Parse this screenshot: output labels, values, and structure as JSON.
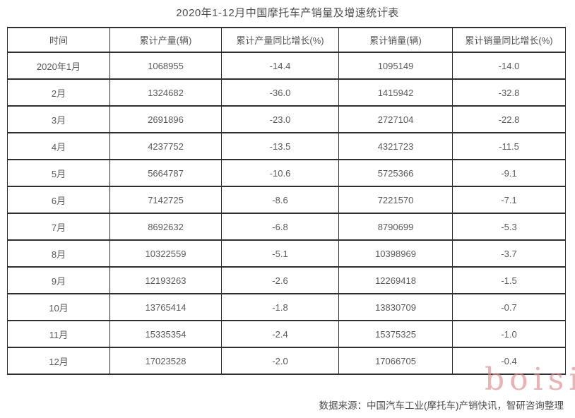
{
  "title": "2020年1-12月中国摩托车产销量及增速统计表",
  "chart_data": {
    "type": "table",
    "title": "2020年1-12月中国摩托车产销量及增速统计表",
    "columns": [
      "时间",
      "累计产量(辆)",
      "累计产量同比增长(%)",
      "累计销量(辆)",
      "累计销量同比增长(%)"
    ],
    "column_keys": [
      "time",
      "cumulative-production",
      "production-yoy-growth",
      "cumulative-sales",
      "sales-yoy-growth"
    ],
    "rows": [
      [
        "2020年1月",
        "1068955",
        "-14.4",
        "1095149",
        "-14.0"
      ],
      [
        "2月",
        "1324682",
        "-36.0",
        "1415942",
        "-32.8"
      ],
      [
        "3月",
        "2691896",
        "-23.0",
        "2727104",
        "-22.8"
      ],
      [
        "4月",
        "4237752",
        "-13.5",
        "4321723",
        "-11.5"
      ],
      [
        "5月",
        "5664787",
        "-10.6",
        "5725366",
        "-9.1"
      ],
      [
        "6月",
        "7142725",
        "-8.6",
        "7221570",
        "-7.1"
      ],
      [
        "7月",
        "8692632",
        "-6.8",
        "8790699",
        "-5.3"
      ],
      [
        "8月",
        "10322559",
        "-5.1",
        "10398969",
        "-3.7"
      ],
      [
        "9月",
        "12193263",
        "-2.6",
        "12269418",
        "-1.5"
      ],
      [
        "10月",
        "13765414",
        "-1.8",
        "13830709",
        "-0.7"
      ],
      [
        "11月",
        "15335354",
        "-2.4",
        "15375325",
        "-1.0"
      ],
      [
        "12月",
        "17023528",
        "-2.0",
        "17066705",
        "-0.4"
      ]
    ],
    "source_note": "数据来源：中国汽车工业(摩托车)产销快讯，智研咨询整理"
  },
  "footer": {
    "source_text": "数据来源：中国汽车工业(摩托车)产销快讯，智研咨询整理"
  },
  "watermark": {
    "text": "boisi",
    "color": "#e08a8a"
  },
  "artifact": {
    "glyph": "≋"
  },
  "colors": {
    "background": "#ffffff",
    "border": "#2e2e2e",
    "cell_text": "#5a5a5a",
    "title_text": "#4d4d4d",
    "watermark": "#e08a8a"
  }
}
